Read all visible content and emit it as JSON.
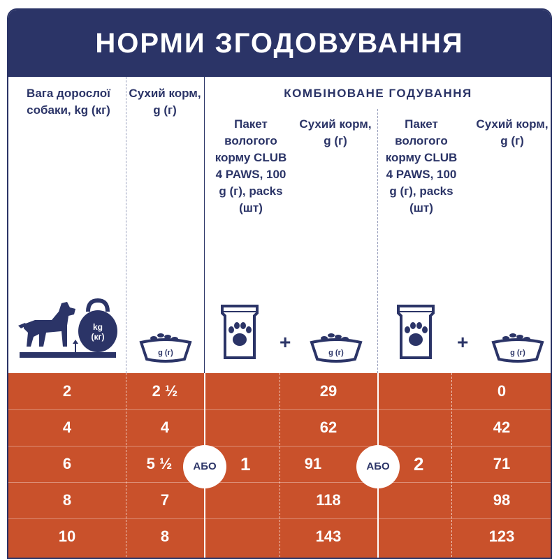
{
  "title": "НОРМИ ЗГОДОВУВАННЯ",
  "headers": {
    "weight": "Вага дорослої собаки, kg (кг)",
    "dry_food": "Сухий корм, g (г)",
    "combined": "КОМБІНОВАНЕ ГОДУВАННЯ",
    "wet_pack": "Пакет вологого корму CLUB 4 PAWS, 100 g (г), packs (шт)",
    "dry_food_combo": "Сухий корм, g (г)"
  },
  "icons": {
    "kettlebell_label_1": "kg",
    "kettlebell_label_2": "(кг)",
    "bowl_label": "g (г)",
    "plus": "+"
  },
  "or_label": "АБО",
  "pack_counts": [
    "1",
    "2"
  ],
  "rows": [
    {
      "weight": "2",
      "dry": "2 ½",
      "combo1_dry": "29",
      "combo2_dry": "0"
    },
    {
      "weight": "4",
      "dry": "4",
      "combo1_dry": "62",
      "combo2_dry": "42"
    },
    {
      "weight": "6",
      "dry": "5 ½",
      "combo1_dry": "91",
      "combo2_dry": "71"
    },
    {
      "weight": "8",
      "dry": "7",
      "combo1_dry": "118",
      "combo2_dry": "98"
    },
    {
      "weight": "10",
      "dry": "8",
      "combo1_dry": "143",
      "combo2_dry": "123"
    }
  ],
  "colors": {
    "navy": "#2b3467",
    "orange": "#c9512b",
    "white": "#ffffff"
  }
}
